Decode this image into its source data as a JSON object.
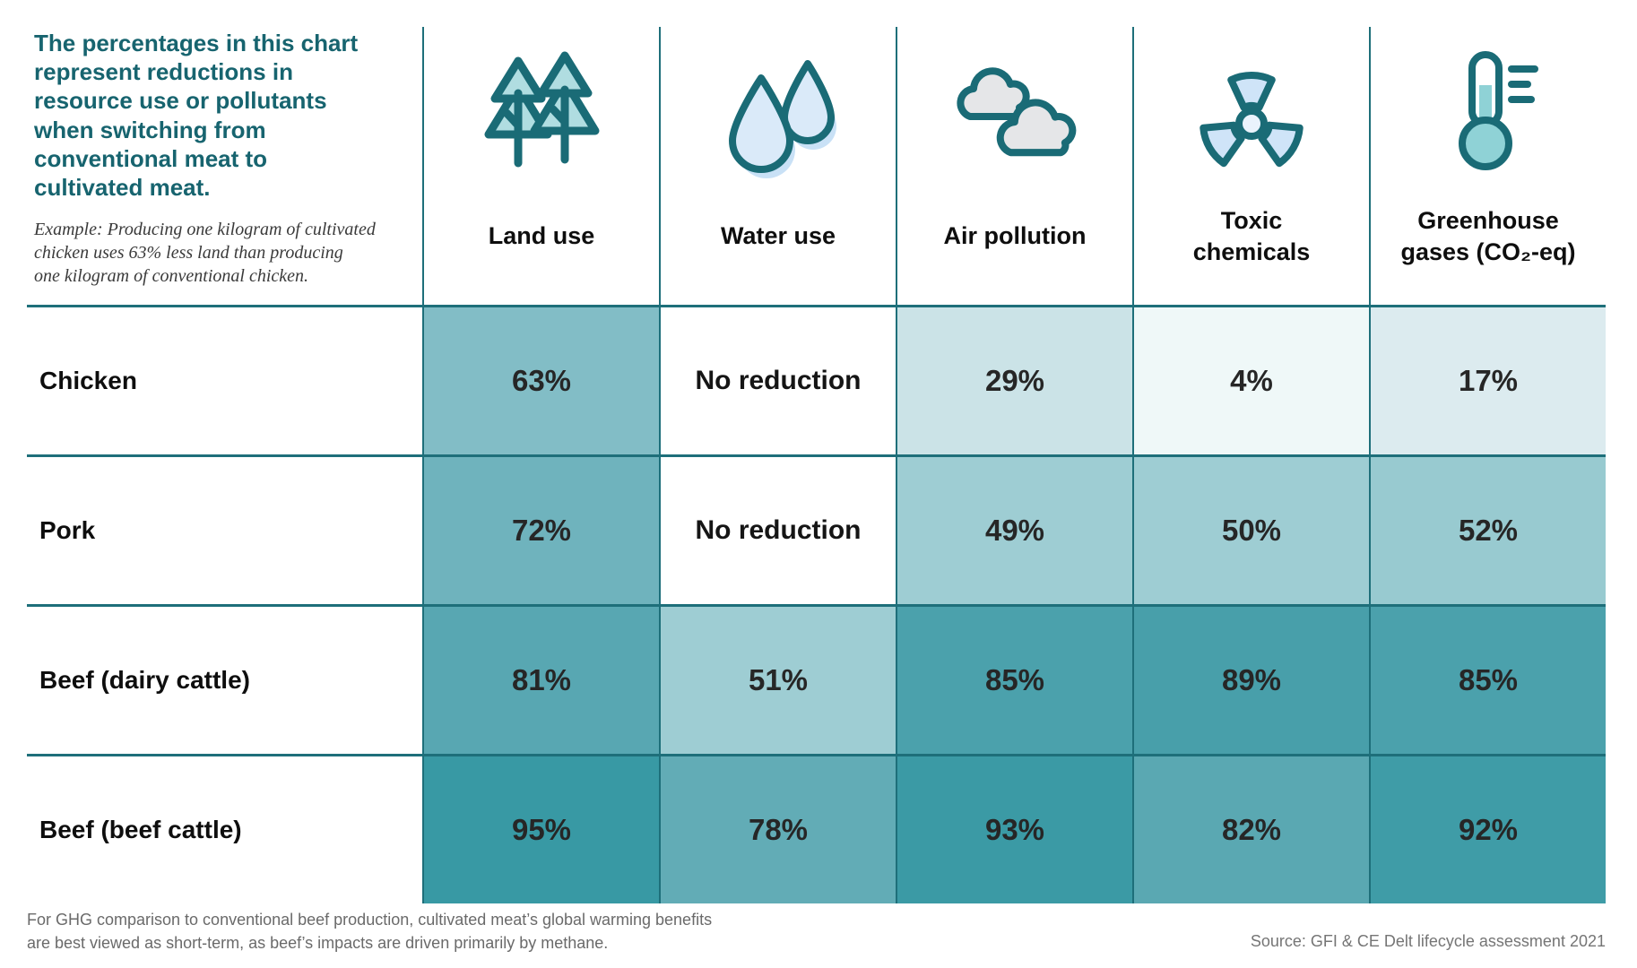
{
  "intro": {
    "title_lines": [
      "The percentages in this chart",
      "represent reductions in",
      "resource use or pollutants",
      "when switching from",
      "conventional meat to",
      "cultivated meat."
    ],
    "example_lines": [
      "Example: Producing one kilogram of cultivated",
      "chicken uses 63% less land than producing",
      "one kilogram of conventional chicken."
    ]
  },
  "colors": {
    "teal_dark": "#1A6B76",
    "grid_line": "#1E6F7A",
    "title_text": "#17646F",
    "value_text": "#262626",
    "note_text": "#6A6A6A",
    "source_text": "#757575",
    "tree_fill": "#B0DDE1",
    "drop_fill": "#DAEAF9",
    "drop_shadow": "#C9E1F6",
    "cloud_fill": "#E5E6E8",
    "radiation_fill": "#CFE4F8",
    "mercury_fill": "#8FD2D6"
  },
  "chart_data": {
    "type": "heatmap",
    "columns": [
      {
        "id": "land-use",
        "label_lines": [
          "Land use"
        ],
        "icon": "trees-icon"
      },
      {
        "id": "water-use",
        "label_lines": [
          "Water use"
        ],
        "icon": "water-drops-icon"
      },
      {
        "id": "air-pollution",
        "label_lines": [
          "Air pollution"
        ],
        "icon": "clouds-icon"
      },
      {
        "id": "toxic-chemicals",
        "label_lines": [
          "Toxic",
          "chemicals"
        ],
        "icon": "radiation-icon"
      },
      {
        "id": "greenhouse-gases",
        "label_lines": [
          "Greenhouse",
          "gases (CO₂-eq)"
        ],
        "icon": "thermometer-icon"
      }
    ],
    "rows": [
      {
        "label": "Chicken",
        "cells": [
          {
            "text": "63%",
            "value": 63,
            "bg": "#82BDC6"
          },
          {
            "text": "No reduction",
            "value": null,
            "bg": "#FFFFFF"
          },
          {
            "text": "29%",
            "value": 29,
            "bg": "#CBE3E7"
          },
          {
            "text": "4%",
            "value": 4,
            "bg": "#EFF8F8"
          },
          {
            "text": "17%",
            "value": 17,
            "bg": "#DCEBEF"
          }
        ]
      },
      {
        "label": "Pork",
        "cells": [
          {
            "text": "72%",
            "value": 72,
            "bg": "#6FB3BD"
          },
          {
            "text": "No reduction",
            "value": null,
            "bg": "#FFFFFF"
          },
          {
            "text": "49%",
            "value": 49,
            "bg": "#9ECDD3"
          },
          {
            "text": "50%",
            "value": 50,
            "bg": "#9ECDD3"
          },
          {
            "text": "52%",
            "value": 52,
            "bg": "#98CAD0"
          }
        ]
      },
      {
        "label": "Beef (dairy cattle)",
        "cells": [
          {
            "text": "81%",
            "value": 81,
            "bg": "#58A7B2"
          },
          {
            "text": "51%",
            "value": 51,
            "bg": "#9ECDD3"
          },
          {
            "text": "85%",
            "value": 85,
            "bg": "#4BA1AC"
          },
          {
            "text": "89%",
            "value": 89,
            "bg": "#489FAA"
          },
          {
            "text": "85%",
            "value": 85,
            "bg": "#4BA1AC"
          }
        ]
      },
      {
        "label": "Beef (beef cattle)",
        "cells": [
          {
            "text": "95%",
            "value": 95,
            "bg": "#3899A4"
          },
          {
            "text": "78%",
            "value": 78,
            "bg": "#62ACB6"
          },
          {
            "text": "93%",
            "value": 93,
            "bg": "#3B9AA5"
          },
          {
            "text": "82%",
            "value": 82,
            "bg": "#5AA8B2"
          },
          {
            "text": "92%",
            "value": 92,
            "bg": "#3F9CA7"
          }
        ]
      }
    ]
  },
  "footer": {
    "note_lines": [
      "For GHG comparison to conventional beef production, cultivated meat’s global warming benefits",
      "are best viewed as short-term, as beef’s impacts are driven primarily by methane."
    ],
    "source": "Source: GFI & CE Delt lifecycle assessment 2021"
  }
}
